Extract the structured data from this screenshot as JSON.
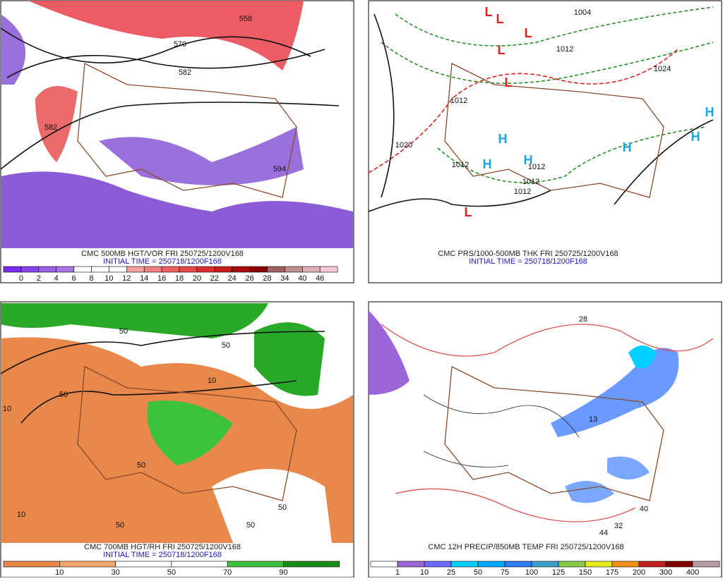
{
  "panels": [
    {
      "caption": "CMC 500MB HGT/VOR FRI 250725/1200V168",
      "initial_time": "INITIAL TIME = 250718/1200F168",
      "labels": [
        "558",
        "570",
        "582",
        "582",
        "594"
      ],
      "colorbar": {
        "labels": [
          "0",
          "2",
          "4",
          "6",
          "8",
          "10",
          "12",
          "14",
          "16",
          "18",
          "20",
          "22",
          "24",
          "26",
          "28",
          "34",
          "40",
          "46"
        ],
        "colors": [
          "#7a2cf0",
          "#8a44ec",
          "#9a60e6",
          "#a878e0",
          "#ffffff",
          "#ffffff",
          "#ffffff",
          "#f4a0a0",
          "#f08080",
          "#ec6060",
          "#e84848",
          "#dc3030",
          "#c81c1c",
          "#a80e0e",
          "#8c0000",
          "#a06060",
          "#c08c8c",
          "#e0b0b8",
          "#f8c8d8"
        ]
      }
    },
    {
      "caption": "CMC PRS/1000-500MB THK FRI 250725/1200V168",
      "initial_time": "INITIAL TIME = 250718/1200F168",
      "labels": [
        "1004",
        "1012",
        "1020",
        "1012",
        "1012",
        "1012",
        "1012",
        "1012",
        "1024"
      ],
      "centers": [
        "L",
        "L",
        "L",
        "L",
        "L",
        "L",
        "H",
        "H",
        "H",
        "H",
        "H",
        "H"
      ]
    },
    {
      "caption": "CMC 700MB HGT/RH FRI 250725/1200V168",
      "initial_time": "INITIAL TIME = 250718/1200F168",
      "labels": [
        "50",
        "50",
        "50",
        "10",
        "10",
        "50",
        "50",
        "50",
        "50",
        "10"
      ],
      "colorbar": {
        "labels": [
          "10",
          "30",
          "50",
          "70",
          "90"
        ],
        "colors": [
          "#e8884a",
          "#f2a66a",
          "#ffffff",
          "#ffffff",
          "#3cc23c",
          "#1a8a1a"
        ]
      }
    },
    {
      "caption": "CMC 12H PRECIP/850MB TEMP FRI 250725/1200V168",
      "labels": [
        "28",
        "44",
        "32",
        "40",
        "13"
      ],
      "colorbar": {
        "labels": [
          "1",
          "10",
          "25",
          "50",
          "75",
          "100",
          "125",
          "150",
          "175",
          "200",
          "300",
          "400"
        ],
        "colors": [
          "#ffffff",
          "#9a66d8",
          "#6a6aff",
          "#00d0ff",
          "#00a8ff",
          "#2a7cf0",
          "#3aa0c8",
          "#8ac84a",
          "#e8e820",
          "#f09018",
          "#c02020",
          "#800000",
          "#b89ca4"
        ]
      }
    }
  ]
}
